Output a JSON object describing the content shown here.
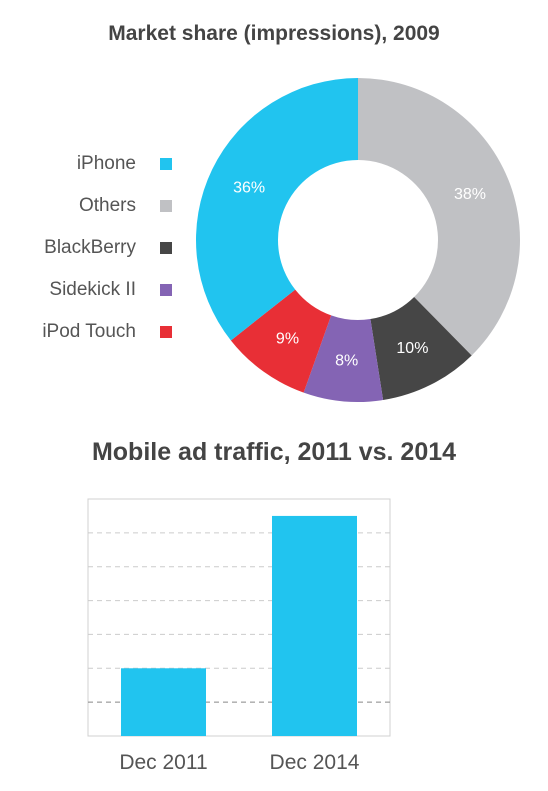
{
  "chart_data": [
    {
      "type": "pie",
      "title": "Market share (impressions), 2009",
      "legend_position": "left",
      "slices": [
        {
          "label": "Others",
          "value": 38,
          "display": "38%",
          "color": "#c0c1c4"
        },
        {
          "label": "BlackBerry",
          "value": 10,
          "display": "10%",
          "color": "#464646"
        },
        {
          "label": "Sidekick II",
          "value": 8,
          "display": "8%",
          "color": "#8464b4"
        },
        {
          "label": "iPod Touch",
          "value": 9,
          "display": "9%",
          "color": "#e82f36"
        },
        {
          "label": "iPhone",
          "value": 36,
          "display": "36%",
          "color": "#21c4ef"
        }
      ],
      "legend": [
        {
          "label": "iPhone",
          "color": "#21c4ef"
        },
        {
          "label": "Others",
          "color": "#c0c1c4"
        },
        {
          "label": "BlackBerry",
          "color": "#464646"
        },
        {
          "label": "Sidekick II",
          "color": "#8464b4"
        },
        {
          "label": "iPod Touch",
          "color": "#e82f36"
        }
      ]
    },
    {
      "type": "bar",
      "title": "Mobile ad traffic, 2011 vs. 2014",
      "categories": [
        "Dec 2011",
        "Dec 2014"
      ],
      "values": [
        2,
        6.5
      ],
      "ylim": [
        0,
        7
      ],
      "grid": true,
      "bar_color": "#21c4ef"
    }
  ]
}
